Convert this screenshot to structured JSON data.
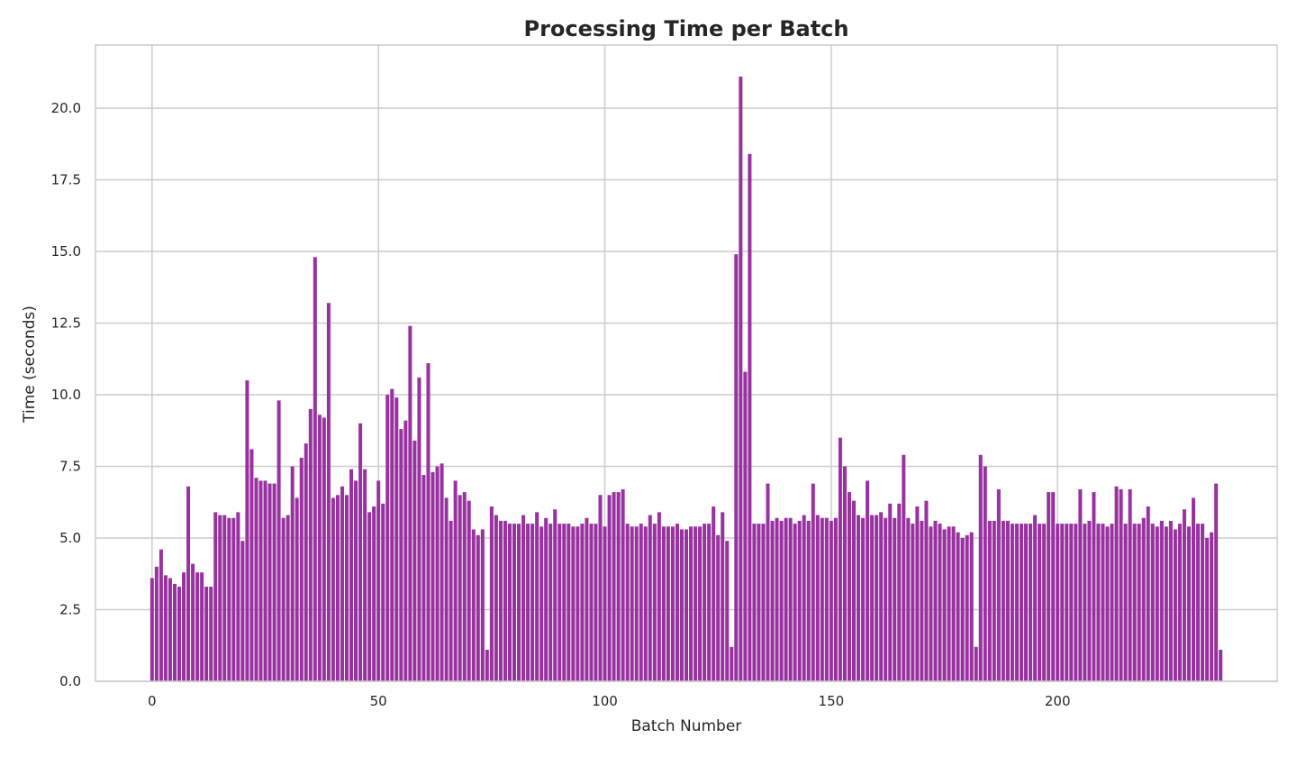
{
  "chart_data": {
    "type": "bar",
    "title": "Processing Time per Batch",
    "xlabel": "Batch Number",
    "ylabel": "Time (seconds)",
    "xlim": [
      -12.5,
      248.5
    ],
    "ylim": [
      0,
      22.2
    ],
    "xticks": [
      0,
      50,
      100,
      150,
      200
    ],
    "yticks": [
      0.0,
      2.5,
      5.0,
      7.5,
      10.0,
      12.5,
      15.0,
      17.5,
      20.0
    ],
    "ytick_labels": [
      "0.0",
      "2.5",
      "5.0",
      "7.5",
      "10.0",
      "12.5",
      "15.0",
      "17.5",
      "20.0"
    ],
    "grid": true,
    "bar_color": "#9932a0",
    "x": "0..236",
    "values": [
      3.6,
      4.0,
      4.6,
      3.7,
      3.6,
      3.4,
      3.3,
      3.8,
      6.8,
      4.1,
      3.8,
      3.8,
      3.3,
      3.3,
      5.9,
      5.8,
      5.8,
      5.7,
      5.7,
      5.9,
      4.9,
      10.5,
      8.1,
      7.1,
      7.0,
      7.0,
      6.9,
      6.9,
      9.8,
      5.7,
      5.8,
      7.5,
      6.4,
      7.8,
      8.3,
      9.5,
      14.8,
      9.3,
      9.2,
      13.2,
      6.4,
      6.5,
      6.8,
      6.5,
      7.4,
      7.0,
      9.0,
      7.4,
      5.9,
      6.1,
      7.0,
      6.2,
      10.0,
      10.2,
      9.9,
      8.8,
      9.1,
      12.4,
      8.4,
      10.6,
      7.2,
      11.1,
      7.3,
      7.5,
      7.6,
      6.4,
      5.6,
      7.0,
      6.5,
      6.6,
      6.3,
      5.3,
      5.1,
      5.3,
      1.1,
      6.1,
      5.8,
      5.6,
      5.6,
      5.5,
      5.5,
      5.5,
      5.8,
      5.5,
      5.5,
      5.9,
      5.4,
      5.7,
      5.5,
      6.0,
      5.5,
      5.5,
      5.5,
      5.4,
      5.4,
      5.5,
      5.7,
      5.5,
      5.5,
      6.5,
      5.4,
      6.5,
      6.6,
      6.6,
      6.7,
      5.5,
      5.4,
      5.4,
      5.5,
      5.4,
      5.8,
      5.5,
      5.9,
      5.4,
      5.4,
      5.4,
      5.5,
      5.3,
      5.3,
      5.4,
      5.4,
      5.4,
      5.5,
      5.5,
      6.1,
      5.1,
      5.9,
      4.9,
      1.2,
      14.9,
      21.1,
      10.8,
      18.4,
      5.5,
      5.5,
      5.5,
      6.9,
      5.6,
      5.7,
      5.6,
      5.7,
      5.7,
      5.5,
      5.6,
      5.8,
      5.6,
      6.9,
      5.8,
      5.7,
      5.7,
      5.6,
      5.7,
      8.5,
      7.5,
      6.6,
      6.3,
      5.8,
      5.7,
      7.0,
      5.8,
      5.8,
      5.9,
      5.7,
      6.2,
      5.7,
      6.2,
      7.9,
      5.7,
      5.5,
      6.1,
      5.6,
      6.3,
      5.4,
      5.6,
      5.5,
      5.3,
      5.4,
      5.4,
      5.2,
      5.0,
      5.1,
      5.2,
      1.2,
      7.9,
      7.5,
      5.6,
      5.6,
      6.7,
      5.6,
      5.6,
      5.5,
      5.5,
      5.5,
      5.5,
      5.5,
      5.8,
      5.5,
      5.5,
      6.6,
      6.6,
      5.5,
      5.5,
      5.5,
      5.5,
      5.5,
      6.7,
      5.5,
      5.6,
      6.6,
      5.5,
      5.5,
      5.4,
      5.5,
      6.8,
      6.7,
      5.5,
      6.7,
      5.5,
      5.5,
      5.7,
      6.1,
      5.5,
      5.4,
      5.6,
      5.4,
      5.6,
      5.3,
      5.5,
      6.0,
      5.4,
      6.4,
      5.5,
      5.5,
      5.0,
      5.2,
      6.9,
      1.1
    ]
  }
}
